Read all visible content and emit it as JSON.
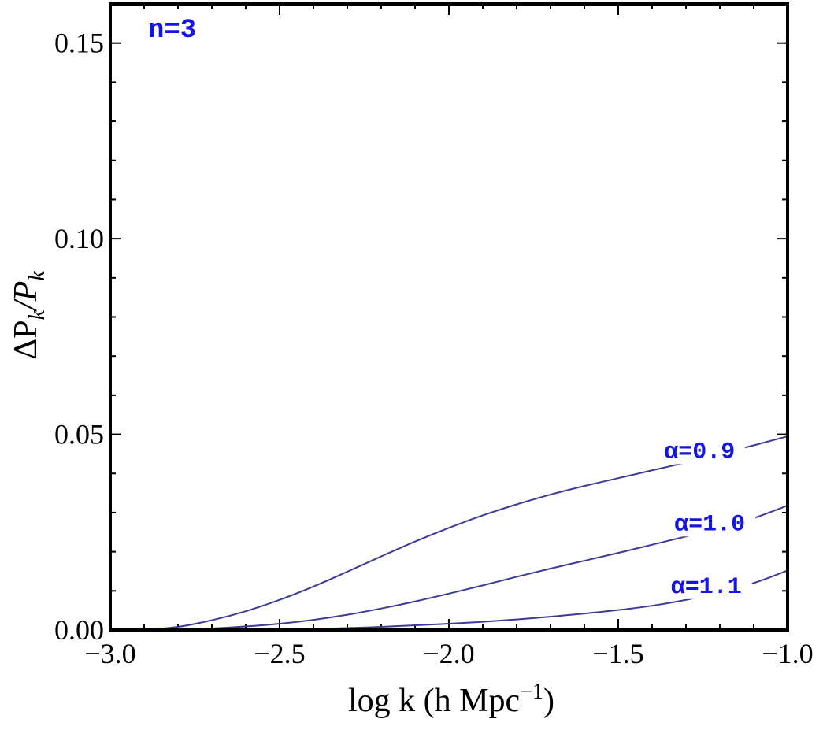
{
  "chart_data": {
    "type": "line",
    "title": "",
    "panel_label": "n=3",
    "xlabel": "log k (h Mpc",
    "xlabel_superscript": "−1",
    "xlabel_suffix": ")",
    "ylabel": "ΔP",
    "ylabel_sub1": "k",
    "ylabel_mid": "/P",
    "ylabel_sub2": "k",
    "xlim": [
      -3.0,
      -1.0
    ],
    "ylim": [
      0.0,
      0.16
    ],
    "x_ticks": [
      -3.0,
      -2.5,
      -2.0,
      -1.5,
      -1.0
    ],
    "x_tick_labels": [
      "−3.0",
      "−2.5",
      "−2.0",
      "−1.5",
      "−1.0"
    ],
    "y_ticks": [
      0.0,
      0.05,
      0.1,
      0.15
    ],
    "y_tick_labels": [
      "0.00",
      "0.05",
      "0.10",
      "0.15"
    ],
    "line_color": "#3c3c96",
    "label_color": "#1414e6",
    "grid": false,
    "x": [
      -2.9,
      -2.8,
      -2.7,
      -2.6,
      -2.5,
      -2.4,
      -2.3,
      -2.2,
      -2.1,
      -2.0,
      -1.9,
      -1.8,
      -1.7,
      -1.6,
      -1.5,
      -1.4,
      -1.3,
      -1.2,
      -1.1,
      -1.0
    ],
    "series": [
      {
        "name": "α=0.9",
        "label": "α=0.9",
        "values": [
          0.0,
          0.0008,
          0.0025,
          0.0048,
          0.0077,
          0.0111,
          0.0149,
          0.0188,
          0.0226,
          0.0261,
          0.0293,
          0.0321,
          0.0346,
          0.0368,
          0.0388,
          0.0408,
          0.0428,
          0.045,
          0.0472,
          0.0495
        ],
        "label_at": {
          "x": -1.26,
          "y": 0.044
        }
      },
      {
        "name": "α=1.0",
        "label": "α=1.0",
        "values": [
          0.0,
          0.0001,
          0.0004,
          0.0009,
          0.0016,
          0.0026,
          0.0039,
          0.0055,
          0.0073,
          0.0093,
          0.0114,
          0.0136,
          0.0157,
          0.0177,
          0.0197,
          0.0218,
          0.0239,
          0.0261,
          0.0286,
          0.0318
        ],
        "label_at": {
          "x": -1.23,
          "y": 0.0255
        }
      },
      {
        "name": "α=1.1",
        "label": "α=1.1",
        "values": [
          0.0,
          0.0,
          0.0,
          0.0001,
          0.0002,
          0.0003,
          0.0005,
          0.0008,
          0.0012,
          0.0016,
          0.0021,
          0.0027,
          0.0034,
          0.0042,
          0.0051,
          0.0062,
          0.0077,
          0.0096,
          0.012,
          0.0152
        ],
        "label_at": {
          "x": -1.24,
          "y": 0.0095
        }
      }
    ]
  }
}
